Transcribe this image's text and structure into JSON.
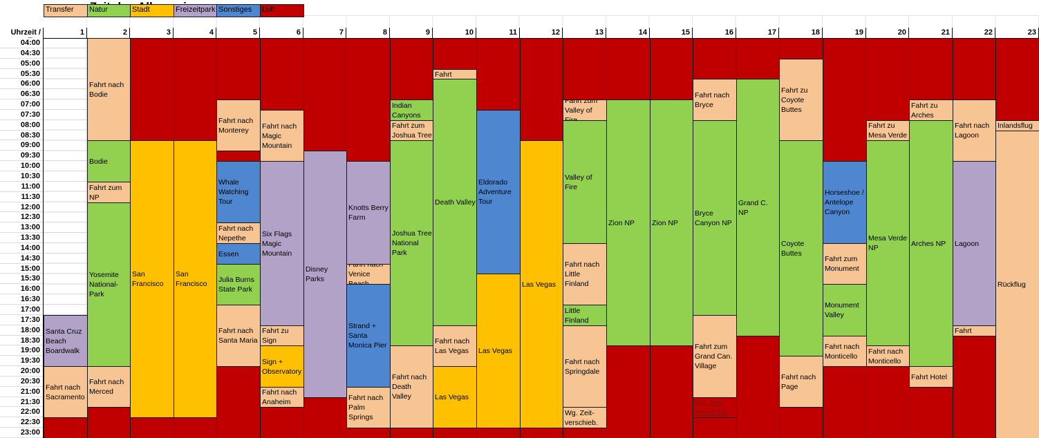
{
  "title": "Zeitplan Allgemein",
  "corner_label": "Uhrzeit / Tag",
  "colors": {
    "transfer": "#F6C593",
    "natur": "#92D050",
    "stadt": "#FFC000",
    "freizeitpark": "#B2A2C7",
    "sonstiges": "#4E86D0",
    "luft": "#C00000",
    "gridline": "#D6D6D6",
    "border": "#161616",
    "wg_text": "#7E1410"
  },
  "legend": [
    {
      "label": "Transfer",
      "category": "transfer"
    },
    {
      "label": "Natur",
      "category": "natur"
    },
    {
      "label": "Stadt",
      "category": "stadt"
    },
    {
      "label": "Freizeitpark",
      "category": "freizeitpark"
    },
    {
      "label": "Sonstiges",
      "category": "sonstiges"
    },
    {
      "label": "Luft",
      "category": "luft"
    }
  ],
  "times": [
    "04:00",
    "04:30",
    "05:00",
    "05:30",
    "06:00",
    "06:30",
    "07:00",
    "07:30",
    "08:00",
    "08:30",
    "09:00",
    "09:30",
    "10:00",
    "10:30",
    "11:00",
    "11:30",
    "12:00",
    "12:30",
    "13:00",
    "13:30",
    "14:00",
    "14:30",
    "15:00",
    "15:30",
    "16:00",
    "16:30",
    "17:00",
    "17:30",
    "18:00",
    "18:30",
    "19:00",
    "19:30",
    "20:00",
    "20:30",
    "21:00",
    "21:30",
    "22:00",
    "22:30",
    "23:00"
  ],
  "days": [
    {
      "day": 1,
      "blocks": [
        {
          "label": "Santa Cruz Beach Boardwalk",
          "category": "freizeitpark",
          "start": "17:30",
          "end": "19:30"
        },
        {
          "label": "Fahrt nach Sacramento",
          "category": "transfer",
          "start": "20:00",
          "end": "22:00"
        },
        {
          "label": "",
          "category": "luft",
          "start": "22:30",
          "end": "23:00"
        }
      ]
    },
    {
      "day": 2,
      "blocks": [
        {
          "label": "Fahrt nach Bodie",
          "category": "transfer",
          "start": "04:00",
          "end": "08:30"
        },
        {
          "label": "Bodie",
          "category": "natur",
          "start": "09:00",
          "end": "10:30"
        },
        {
          "label": "Fahrt zum NP",
          "category": "transfer",
          "start": "11:00",
          "end": "11:30"
        },
        {
          "label": "Yosemite National-Park",
          "category": "natur",
          "start": "12:00",
          "end": "19:30"
        },
        {
          "label": "Fahrt nach Merced",
          "category": "transfer",
          "start": "20:00",
          "end": "21:30"
        },
        {
          "label": "",
          "category": "luft",
          "start": "22:00",
          "end": "23:00"
        }
      ]
    },
    {
      "day": 3,
      "blocks": [
        {
          "label": "",
          "category": "luft",
          "start": "04:00",
          "end": "08:30"
        },
        {
          "label": "San Francisco",
          "category": "stadt",
          "start": "09:00",
          "end": "22:00"
        },
        {
          "label": "",
          "category": "luft",
          "start": "22:30",
          "end": "23:00"
        }
      ]
    },
    {
      "day": 4,
      "blocks": [
        {
          "label": "",
          "category": "luft",
          "start": "04:00",
          "end": "08:30"
        },
        {
          "label": "San Francisco",
          "category": "stadt",
          "start": "09:00",
          "end": "22:00"
        },
        {
          "label": "",
          "category": "luft",
          "start": "22:30",
          "end": "23:00"
        }
      ]
    },
    {
      "day": 5,
      "blocks": [
        {
          "label": "",
          "category": "luft",
          "start": "04:00",
          "end": "06:30"
        },
        {
          "label": "Fahrt nach Monterey",
          "category": "transfer",
          "start": "07:00",
          "end": "09:00"
        },
        {
          "label": "",
          "category": "luft",
          "start": "09:30",
          "end": "09:30"
        },
        {
          "label": "Whale Watching Tour",
          "category": "sonstiges",
          "start": "10:00",
          "end": "12:30"
        },
        {
          "label": "Fahrt nach Nepethe",
          "category": "transfer",
          "start": "13:00",
          "end": "13:30"
        },
        {
          "label": "Essen",
          "category": "sonstiges",
          "start": "14:00",
          "end": "14:30"
        },
        {
          "label": "Julia Burns State Park",
          "category": "natur",
          "start": "15:00",
          "end": "16:30"
        },
        {
          "label": "Fahrt nach Santa Maria",
          "category": "transfer",
          "start": "17:00",
          "end": "19:30"
        },
        {
          "label": "",
          "category": "luft",
          "start": "20:00",
          "end": "23:00"
        }
      ]
    },
    {
      "day": 6,
      "blocks": [
        {
          "label": "",
          "category": "luft",
          "start": "04:00",
          "end": "07:00"
        },
        {
          "label": "Fahrt nach Magic Mountain",
          "category": "transfer",
          "start": "07:30",
          "end": "09:30"
        },
        {
          "label": "Six Flags Magic Mountain",
          "category": "freizeitpark",
          "start": "10:00",
          "end": "17:30"
        },
        {
          "label": "Fahrt zu Sign",
          "category": "transfer",
          "start": "18:00",
          "end": "18:30"
        },
        {
          "label": "Sign + Observatory",
          "category": "stadt",
          "start": "19:00",
          "end": "20:30"
        },
        {
          "label": "Fahrt nach Anaheim",
          "category": "transfer",
          "start": "21:00",
          "end": "21:30"
        },
        {
          "label": "",
          "category": "luft",
          "start": "22:00",
          "end": "23:00"
        }
      ]
    },
    {
      "day": 7,
      "blocks": [
        {
          "label": "",
          "category": "luft",
          "start": "04:00",
          "end": "09:00"
        },
        {
          "label": "Disney Parks",
          "category": "freizeitpark",
          "start": "09:30",
          "end": "21:00"
        },
        {
          "label": "",
          "category": "luft",
          "start": "21:30",
          "end": "23:00"
        }
      ]
    },
    {
      "day": 8,
      "blocks": [
        {
          "label": "",
          "category": "luft",
          "start": "04:00",
          "end": "09:30"
        },
        {
          "label": "Knotts Berry Farm",
          "category": "freizeitpark",
          "start": "10:00",
          "end": "14:30"
        },
        {
          "label": "Fahrt nach Venice Beach",
          "category": "transfer",
          "start": "15:00",
          "end": "15:30"
        },
        {
          "label": "Strand + Santa Monica Pier",
          "category": "sonstiges",
          "start": "16:00",
          "end": "20:30"
        },
        {
          "label": "Fahrt nach Palm Springs",
          "category": "transfer",
          "start": "21:00",
          "end": "22:30"
        },
        {
          "label": "",
          "category": "luft",
          "start": "23:00",
          "end": "23:00"
        }
      ]
    },
    {
      "day": 9,
      "blocks": [
        {
          "label": "",
          "category": "luft",
          "start": "04:00",
          "end": "06:30"
        },
        {
          "label": "Indian Canyons",
          "category": "natur",
          "start": "07:00",
          "end": "07:30"
        },
        {
          "label": "Fahrt zum Joshua Tree",
          "category": "transfer",
          "start": "08:00",
          "end": "08:30"
        },
        {
          "label": "Joshua Tree National Park",
          "category": "natur",
          "start": "09:00",
          "end": "18:30"
        },
        {
          "label": "Fahrt nach Death Valley",
          "category": "transfer",
          "start": "19:00",
          "end": "22:30"
        },
        {
          "label": "",
          "category": "luft",
          "start": "23:00",
          "end": "23:00"
        }
      ]
    },
    {
      "day": 10,
      "blocks": [
        {
          "label": "",
          "category": "luft",
          "start": "04:00",
          "end": "05:00"
        },
        {
          "label": "Fahrt",
          "category": "transfer",
          "start": "05:30",
          "end": "05:30"
        },
        {
          "label": "Death Valley",
          "category": "natur",
          "start": "06:00",
          "end": "17:30"
        },
        {
          "label": "Fahrt nach Las Vegas",
          "category": "transfer",
          "start": "18:00",
          "end": "19:30"
        },
        {
          "label": "Las Vegas",
          "category": "stadt",
          "start": "20:00",
          "end": "22:30"
        },
        {
          "label": "",
          "category": "luft",
          "start": "23:00",
          "end": "23:00"
        }
      ]
    },
    {
      "day": 11,
      "blocks": [
        {
          "label": "",
          "category": "luft",
          "start": "04:00",
          "end": "07:00"
        },
        {
          "label": "Eldorado Adventure Tour",
          "category": "sonstiges",
          "start": "07:30",
          "end": "15:00"
        },
        {
          "label": "Las Vegas",
          "category": "stadt",
          "start": "15:30",
          "end": "22:30"
        },
        {
          "label": "",
          "category": "luft",
          "start": "23:00",
          "end": "23:00"
        }
      ]
    },
    {
      "day": 12,
      "blocks": [
        {
          "label": "",
          "category": "luft",
          "start": "04:00",
          "end": "08:30"
        },
        {
          "label": "Las Vegas",
          "category": "stadt",
          "start": "09:00",
          "end": "22:30"
        },
        {
          "label": "",
          "category": "luft",
          "start": "23:00",
          "end": "23:00"
        }
      ]
    },
    {
      "day": 13,
      "blocks": [
        {
          "label": "",
          "category": "luft",
          "start": "04:00",
          "end": "06:30"
        },
        {
          "label": "Fahrt zum Valley of Fire",
          "category": "transfer",
          "start": "07:00",
          "end": "07:30"
        },
        {
          "label": "Valley of Fire",
          "category": "natur",
          "start": "08:00",
          "end": "13:30"
        },
        {
          "label": "Fahrt nach Little Finland",
          "category": "transfer",
          "start": "14:00",
          "end": "16:30"
        },
        {
          "label": "Little Finland",
          "category": "natur",
          "start": "17:00",
          "end": "17:30"
        },
        {
          "label": "Fahrt nach Springdale",
          "category": "transfer",
          "start": "18:00",
          "end": "21:30"
        },
        {
          "label": "Wg. Zeit-verschieb.",
          "category": "transfer",
          "start": "22:00",
          "end": "22:30"
        },
        {
          "label": "",
          "category": "luft",
          "start": "23:00",
          "end": "23:00"
        }
      ]
    },
    {
      "day": 14,
      "blocks": [
        {
          "label": "",
          "category": "luft",
          "start": "04:00",
          "end": "06:30"
        },
        {
          "label": "Zion NP",
          "category": "natur",
          "start": "07:00",
          "end": "18:30"
        },
        {
          "label": "",
          "category": "luft",
          "start": "19:00",
          "end": "23:00"
        }
      ]
    },
    {
      "day": 15,
      "blocks": [
        {
          "label": "",
          "category": "luft",
          "start": "04:00",
          "end": "06:30"
        },
        {
          "label": "Zion NP",
          "category": "natur",
          "start": "07:00",
          "end": "18:30"
        },
        {
          "label": "",
          "category": "luft",
          "start": "19:00",
          "end": "23:00"
        }
      ]
    },
    {
      "day": 16,
      "blocks": [
        {
          "label": "",
          "category": "luft",
          "start": "04:00",
          "end": "05:30"
        },
        {
          "label": "Fahrt nach Bryce",
          "category": "transfer",
          "start": "06:00",
          "end": "07:30"
        },
        {
          "label": "Bryce Canyon NP",
          "category": "natur",
          "start": "08:00",
          "end": "17:00"
        },
        {
          "label": "Fahrt zum Grand Can. Village",
          "category": "transfer",
          "start": "17:30",
          "end": "21:00"
        },
        {
          "label": "Wg. Zeit-Verschieb.",
          "category": "luft",
          "start": "21:30",
          "end": "22:00",
          "tclass": "wg"
        },
        {
          "label": "",
          "category": "luft",
          "start": "22:30",
          "end": "23:00"
        }
      ]
    },
    {
      "day": 17,
      "blocks": [
        {
          "label": "",
          "category": "luft",
          "start": "04:00",
          "end": "05:30"
        },
        {
          "label": "Grand C. NP",
          "category": "natur",
          "start": "06:00",
          "end": "18:00"
        },
        {
          "label": "",
          "category": "luft",
          "start": "18:30",
          "end": "23:00"
        }
      ]
    },
    {
      "day": 18,
      "blocks": [
        {
          "label": "",
          "category": "luft",
          "start": "04:00",
          "end": "04:30"
        },
        {
          "label": "Fahrt zu Coyote Buttes",
          "category": "transfer",
          "start": "05:00",
          "end": "08:30"
        },
        {
          "label": "Coyote Buttes",
          "category": "natur",
          "start": "09:00",
          "end": "19:00"
        },
        {
          "label": "Fahrt nach Page",
          "category": "transfer",
          "start": "19:30",
          "end": "21:30"
        },
        {
          "label": "",
          "category": "luft",
          "start": "22:00",
          "end": "23:00"
        }
      ]
    },
    {
      "day": 19,
      "blocks": [
        {
          "label": "",
          "category": "luft",
          "start": "04:00",
          "end": "09:30"
        },
        {
          "label": "Horseshoe / Antelope Canyon",
          "category": "sonstiges",
          "start": "10:00",
          "end": "13:30"
        },
        {
          "label": "Fahrt zum Monument",
          "category": "transfer",
          "start": "14:00",
          "end": "15:30"
        },
        {
          "label": "Monument Valley",
          "category": "natur",
          "start": "16:00",
          "end": "18:00"
        },
        {
          "label": "Fahrt nach Monticello",
          "category": "transfer",
          "start": "18:30",
          "end": "19:30"
        },
        {
          "label": "",
          "category": "luft",
          "start": "20:00",
          "end": "23:00"
        }
      ]
    },
    {
      "day": 20,
      "blocks": [
        {
          "label": "",
          "category": "luft",
          "start": "04:00",
          "end": "07:30"
        },
        {
          "label": "Fahrt zu Mesa Verde",
          "category": "transfer",
          "start": "08:00",
          "end": "08:30"
        },
        {
          "label": "Mesa Verde NP",
          "category": "natur",
          "start": "09:00",
          "end": "18:30"
        },
        {
          "label": "Fahrt nach Monticello",
          "category": "transfer",
          "start": "19:00",
          "end": "19:30"
        },
        {
          "label": "",
          "category": "luft",
          "start": "20:00",
          "end": "23:00"
        }
      ]
    },
    {
      "day": 21,
      "blocks": [
        {
          "label": "",
          "category": "luft",
          "start": "04:00",
          "end": "06:30"
        },
        {
          "label": "Fahrt zu Arches",
          "category": "transfer",
          "start": "07:00",
          "end": "07:30"
        },
        {
          "label": "Arches NP",
          "category": "natur",
          "start": "08:00",
          "end": "19:30"
        },
        {
          "label": "Fahrt Hotel",
          "category": "transfer",
          "start": "20:00",
          "end": "20:30"
        },
        {
          "label": "",
          "category": "luft",
          "start": "21:00",
          "end": "23:00"
        }
      ]
    },
    {
      "day": 22,
      "blocks": [
        {
          "label": "",
          "category": "luft",
          "start": "04:00",
          "end": "06:30"
        },
        {
          "label": "Fahrt nach Lagoon",
          "category": "transfer",
          "start": "07:00",
          "end": "09:30"
        },
        {
          "label": "Lagoon",
          "category": "freizeitpark",
          "start": "10:00",
          "end": "17:30"
        },
        {
          "label": "Fahrt",
          "category": "transfer",
          "start": "18:00",
          "end": "18:00"
        },
        {
          "label": "",
          "category": "luft",
          "start": "18:30",
          "end": "23:00"
        }
      ]
    },
    {
      "day": 23,
      "blocks": [
        {
          "label": "",
          "category": "luft",
          "start": "04:00",
          "end": "07:30"
        },
        {
          "label": "Inlandsflug",
          "category": "transfer",
          "start": "08:00",
          "end": "08:00"
        },
        {
          "label": "Rückflug",
          "category": "transfer",
          "start": "08:30",
          "end": "23:00"
        }
      ]
    }
  ]
}
